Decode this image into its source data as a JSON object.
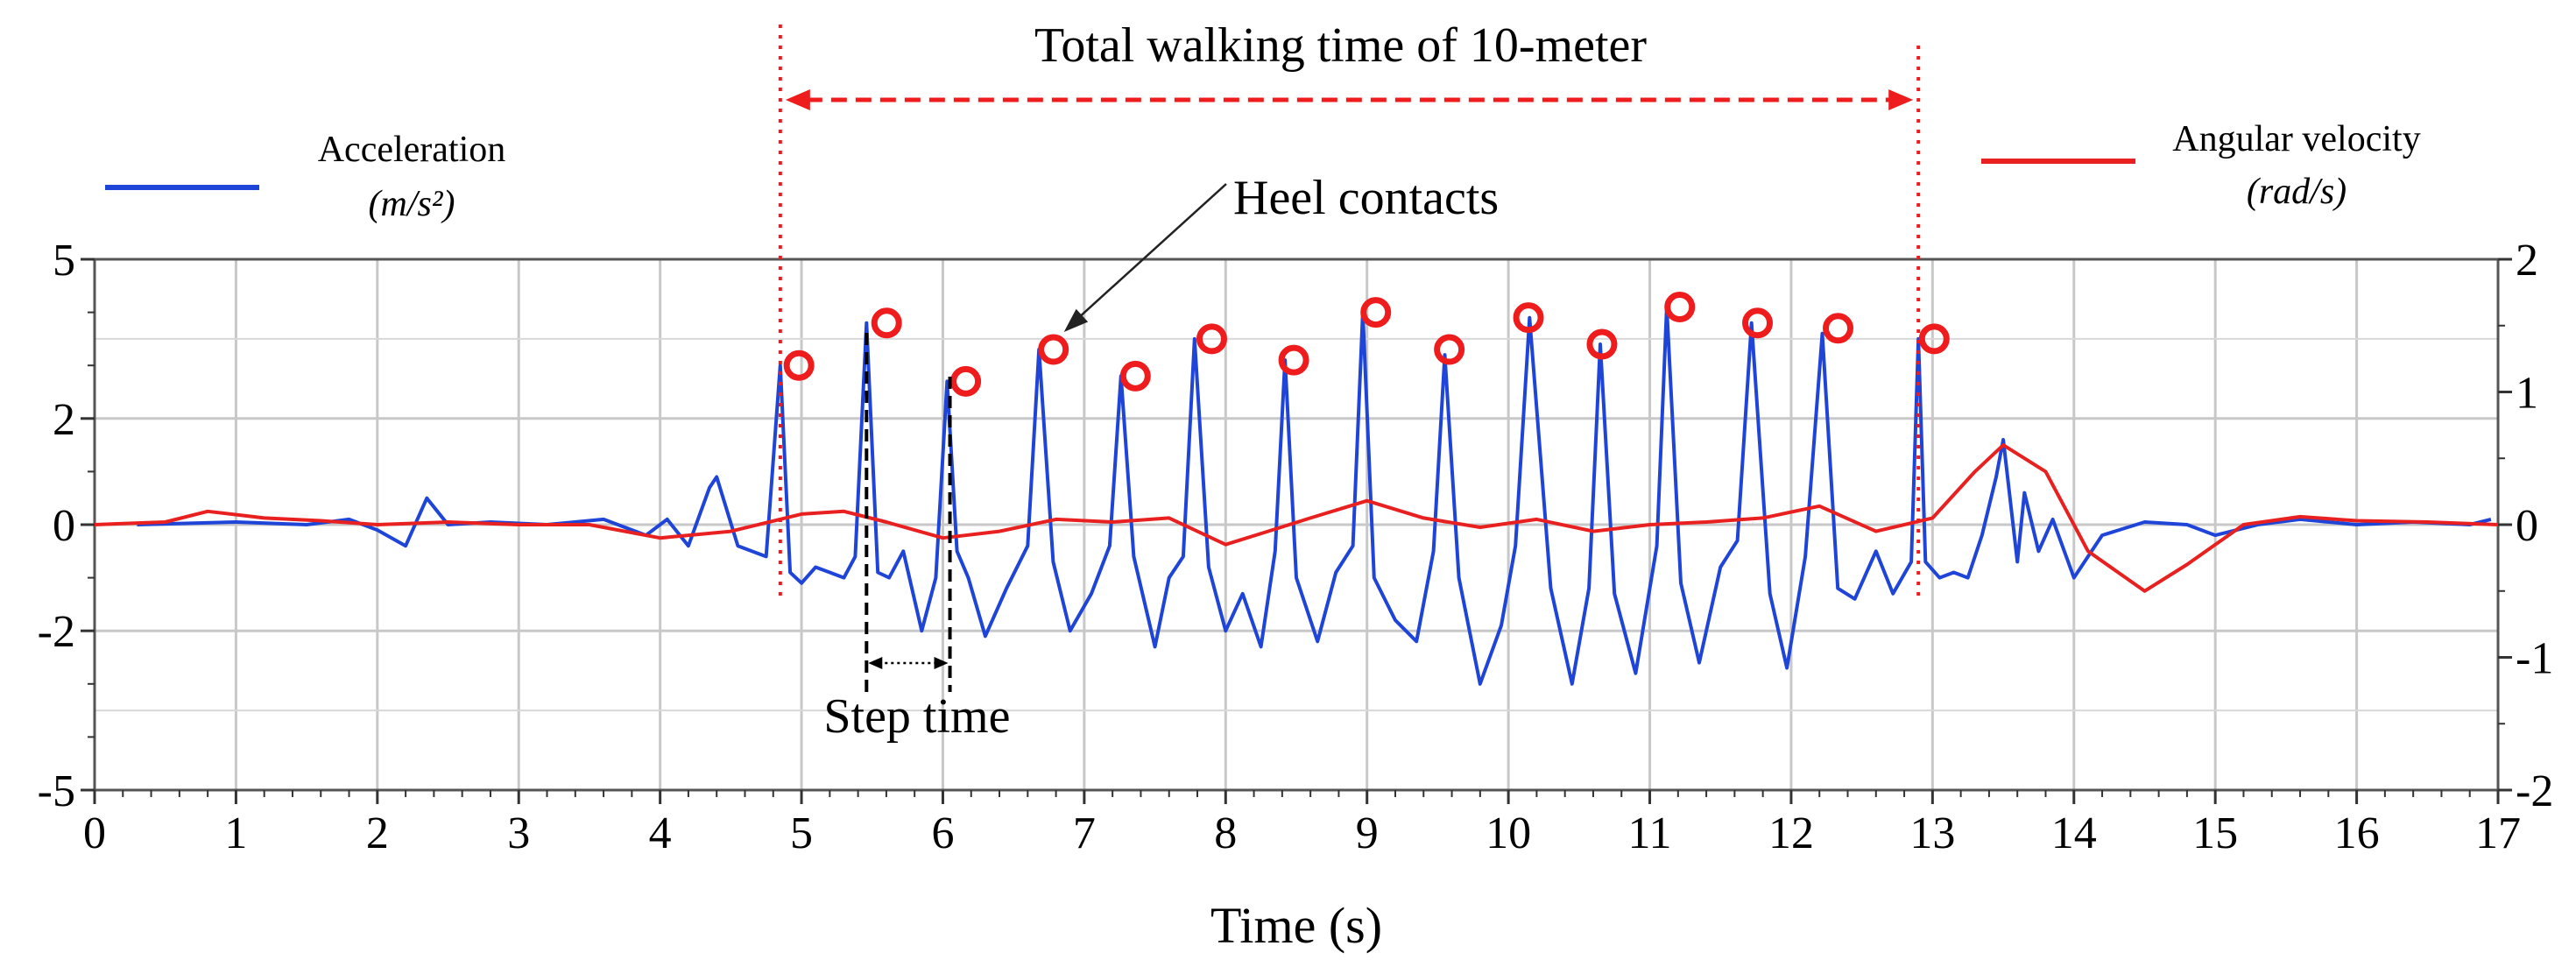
{
  "chart_data": {
    "type": "line",
    "title": "Total walking time of 10-meter",
    "xlabel": "Time (s)",
    "x_ticks": [
      "0",
      "1",
      "2",
      "3",
      "4",
      "5",
      "6",
      "7",
      "8",
      "9",
      "10",
      "11",
      "12",
      "13",
      "14",
      "15",
      "16",
      "17"
    ],
    "xlim": [
      0,
      17
    ],
    "y_left": {
      "label_line1": "Acceleration",
      "label_line2": "(m/s²)",
      "ticks": [
        "5",
        "2",
        "0",
        "-2",
        "-5"
      ],
      "range": [
        -5,
        5
      ]
    },
    "y_right": {
      "label_line1": "Angular velocity",
      "label_line2": "(rad/s)",
      "ticks": [
        "2",
        "1",
        "0",
        "-1",
        "-2"
      ],
      "range": [
        -2,
        2
      ]
    },
    "grid": true,
    "legend": [
      {
        "name": "Acceleration (m/s²)",
        "color": "#1f45d8"
      },
      {
        "name": "Angular velocity (rad/s)",
        "color": "#e8201f"
      }
    ],
    "series": [
      {
        "name": "Acceleration",
        "axis": "left",
        "color": "#1f45d8",
        "x": [
          0.3,
          1.0,
          1.5,
          1.8,
          2.0,
          2.2,
          2.35,
          2.5,
          2.8,
          3.2,
          3.6,
          3.9,
          4.05,
          4.2,
          4.35,
          4.4,
          4.55,
          4.75,
          4.85,
          4.92,
          5.0,
          5.1,
          5.2,
          5.3,
          5.38,
          5.46,
          5.54,
          5.62,
          5.72,
          5.85,
          5.95,
          6.03,
          6.1,
          6.18,
          6.3,
          6.45,
          6.6,
          6.68,
          6.78,
          6.9,
          7.05,
          7.18,
          7.26,
          7.35,
          7.5,
          7.6,
          7.7,
          7.78,
          7.88,
          8.0,
          8.12,
          8.25,
          8.35,
          8.42,
          8.5,
          8.65,
          8.78,
          8.9,
          8.97,
          9.05,
          9.2,
          9.35,
          9.47,
          9.55,
          9.65,
          9.8,
          9.95,
          10.05,
          10.15,
          10.3,
          10.45,
          10.57,
          10.65,
          10.75,
          10.9,
          11.05,
          11.12,
          11.22,
          11.35,
          11.5,
          11.62,
          11.72,
          11.85,
          11.97,
          12.1,
          12.22,
          12.33,
          12.45,
          12.6,
          12.72,
          12.85,
          12.9,
          12.95,
          13.05,
          13.15,
          13.25,
          13.35,
          13.45,
          13.5,
          13.6,
          13.65,
          13.75,
          13.85,
          14.0,
          14.2,
          14.5,
          14.8,
          15.0,
          15.3,
          15.6,
          16.0,
          16.4,
          16.8,
          16.95
        ],
        "y": [
          0,
          0.05,
          0,
          0.1,
          -0.1,
          -0.4,
          0.5,
          0,
          0.05,
          0,
          0.1,
          -0.2,
          0.1,
          -0.4,
          0.7,
          0.9,
          -0.4,
          -0.6,
          3.0,
          -0.9,
          -1.1,
          -0.8,
          -0.9,
          -1.0,
          -0.6,
          3.8,
          -0.9,
          -1.0,
          -0.5,
          -2.0,
          -1.0,
          2.7,
          -0.5,
          -1.0,
          -2.1,
          -1.2,
          -0.4,
          3.3,
          -0.7,
          -2.0,
          -1.3,
          -0.4,
          2.8,
          -0.6,
          -2.3,
          -1.0,
          -0.6,
          3.5,
          -0.8,
          -2.0,
          -1.3,
          -2.3,
          -0.5,
          3.1,
          -1.0,
          -2.2,
          -0.9,
          -0.4,
          4.0,
          -1.0,
          -1.8,
          -2.2,
          -0.5,
          3.2,
          -1.0,
          -3.0,
          -1.9,
          -0.4,
          3.9,
          -1.2,
          -3.0,
          -1.2,
          3.4,
          -1.3,
          -2.8,
          -0.4,
          4.1,
          -1.1,
          -2.6,
          -0.8,
          -0.3,
          3.8,
          -1.3,
          -2.7,
          -0.6,
          3.6,
          -1.2,
          -1.4,
          -0.5,
          -1.3,
          -0.7,
          3.5,
          -0.7,
          -1.0,
          -0.9,
          -1.0,
          -0.2,
          0.9,
          1.6,
          -0.7,
          0.6,
          -0.5,
          0.1,
          -1.0,
          -0.2,
          0.05,
          0,
          -0.2,
          0,
          0.1,
          0,
          0.05,
          0,
          0.1
        ]
      },
      {
        "name": "Angular velocity",
        "axis": "right",
        "color": "#e8201f",
        "x": [
          0,
          0.5,
          0.8,
          1.2,
          1.6,
          2.0,
          2.5,
          3.0,
          3.5,
          4.0,
          4.5,
          5.0,
          5.3,
          5.6,
          6.0,
          6.4,
          6.8,
          7.2,
          7.6,
          8.0,
          8.3,
          8.6,
          9.0,
          9.4,
          9.8,
          10.2,
          10.6,
          11.0,
          11.4,
          11.8,
          12.2,
          12.6,
          13.0,
          13.3,
          13.5,
          13.8,
          14.1,
          14.5,
          14.8,
          15.2,
          15.6,
          16.0,
          16.5,
          17.0
        ],
        "y": [
          0,
          0.02,
          0.1,
          0.05,
          0.03,
          0,
          0.02,
          0,
          0,
          -0.1,
          -0.05,
          0.08,
          0.1,
          0.02,
          -0.1,
          -0.05,
          0.04,
          0.02,
          0.05,
          -0.15,
          -0.05,
          0.05,
          0.18,
          0.05,
          -0.02,
          0.04,
          -0.05,
          0.0,
          0.02,
          0.05,
          0.14,
          -0.05,
          0.05,
          0.4,
          0.6,
          0.4,
          -0.2,
          -0.5,
          -0.3,
          0.0,
          0.06,
          0.03,
          0.02,
          0
        ]
      }
    ],
    "markers": {
      "label": "Heel contacts",
      "points": [
        {
          "x": 4.92,
          "y": 3.0
        },
        {
          "x": 5.54,
          "y": 3.8
        },
        {
          "x": 6.1,
          "y": 2.7
        },
        {
          "x": 6.72,
          "y": 3.3
        },
        {
          "x": 7.3,
          "y": 2.8
        },
        {
          "x": 7.84,
          "y": 3.5
        },
        {
          "x": 8.42,
          "y": 3.1
        },
        {
          "x": 9.0,
          "y": 4.0
        },
        {
          "x": 9.52,
          "y": 3.3
        },
        {
          "x": 10.08,
          "y": 3.9
        },
        {
          "x": 10.6,
          "y": 3.4
        },
        {
          "x": 11.15,
          "y": 4.1
        },
        {
          "x": 11.7,
          "y": 3.8
        },
        {
          "x": 12.27,
          "y": 3.7
        },
        {
          "x": 12.95,
          "y": 3.5
        }
      ]
    },
    "annotations": {
      "total_time_label": "Total walking time of 10-meter",
      "step_time_label": "Step time",
      "total_start": 4.85,
      "total_end": 12.9,
      "step_start": 5.46,
      "step_end": 6.05
    }
  }
}
